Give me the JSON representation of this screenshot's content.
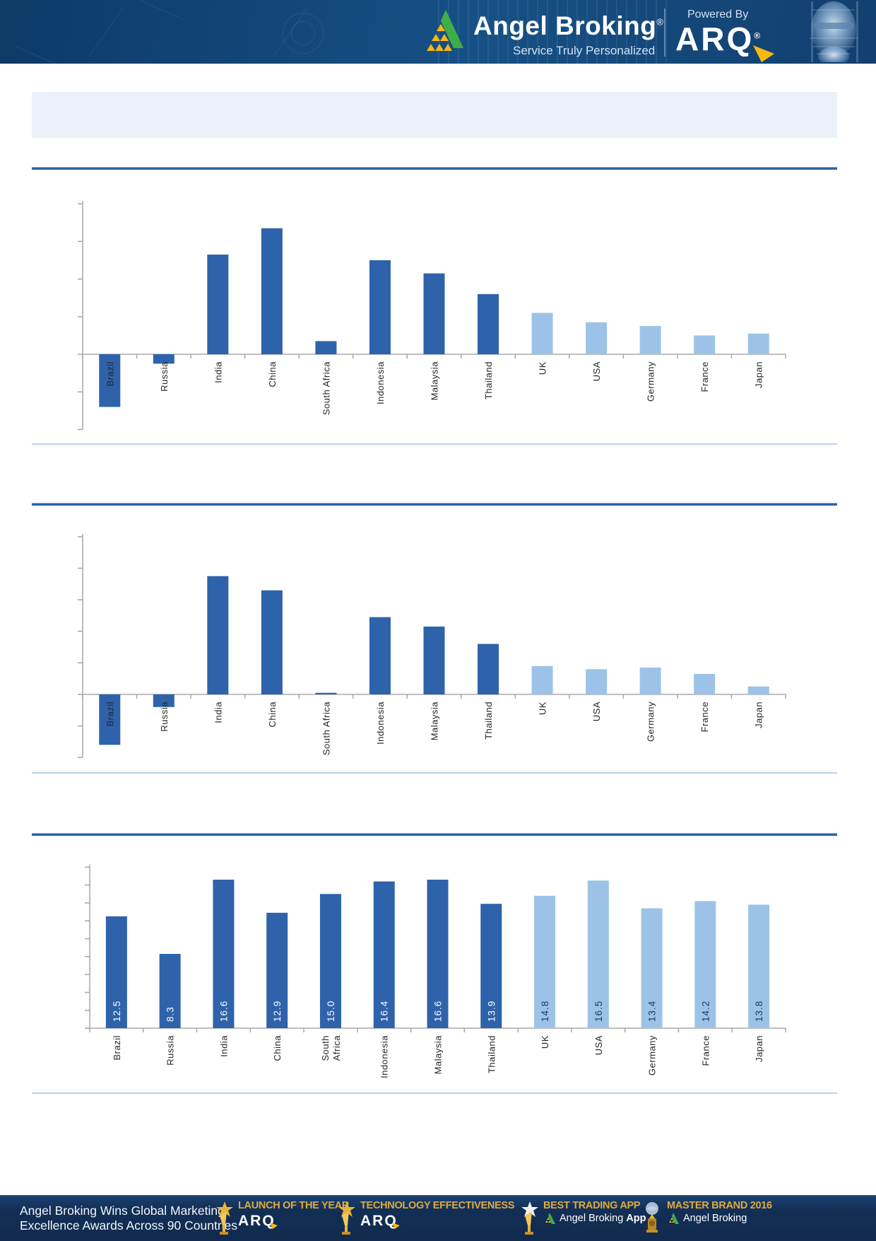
{
  "header": {
    "brand": "Angel Broking",
    "brand_registered": "®",
    "tagline": "Service Truly Personalized",
    "powered_by_label": "Powered By",
    "powered_by_brand": "ARQ",
    "powered_by_registered": "®",
    "colors": {
      "background": "#14497d",
      "logo_green": "#3fae49",
      "logo_yellow": "#f7b90d"
    }
  },
  "title_box": {
    "text": ""
  },
  "chart_data": [
    {
      "type": "bar",
      "title": "",
      "categories": [
        "Brazil",
        "Russia",
        "India",
        "China",
        "South Africa",
        "Indonesia",
        "Malaysia",
        "Thailand",
        "UK",
        "USA",
        "Germany",
        "France",
        "Japan"
      ],
      "values": [
        -2.8,
        -0.5,
        5.3,
        6.7,
        0.7,
        5.0,
        4.3,
        3.2,
        2.2,
        1.7,
        1.5,
        1.0,
        1.1
      ],
      "values_estimated_from_gridlines": true,
      "data_labels_shown": false,
      "axis_tick_labels_shown": false,
      "ylim": [
        -4,
        8
      ],
      "tick_step": 2,
      "grid": false,
      "legend": null,
      "bar_color_dark": "#2e63ac",
      "bar_color_light": "#9cc3e7",
      "light_from_index": 8
    },
    {
      "type": "bar",
      "title": "",
      "categories": [
        "Brazil",
        "Russia",
        "India",
        "China",
        "South Africa",
        "Indonesia",
        "Malaysia",
        "Thailand",
        "UK",
        "USA",
        "Germany",
        "France",
        "Japan"
      ],
      "values": [
        -3.2,
        -0.8,
        7.5,
        6.6,
        0.1,
        4.9,
        4.3,
        3.2,
        1.8,
        1.6,
        1.7,
        1.3,
        0.5
      ],
      "values_estimated_from_gridlines": true,
      "data_labels_shown": false,
      "axis_tick_labels_shown": false,
      "ylim": [
        -4,
        10
      ],
      "tick_step": 2,
      "grid": false,
      "legend": null,
      "bar_color_dark": "#2e63ac",
      "bar_color_light": "#9cc3e7",
      "light_from_index": 8
    },
    {
      "type": "bar",
      "title": "",
      "categories": [
        "Brazil",
        "Russia",
        "India",
        "China",
        "South Africa",
        "Indonesia",
        "Malaysia",
        "Thailand",
        "UK",
        "USA",
        "Germany",
        "France",
        "Japan"
      ],
      "values": [
        12.5,
        8.3,
        16.6,
        12.9,
        15.0,
        16.4,
        16.6,
        13.9,
        14.8,
        16.5,
        13.4,
        14.2,
        13.8
      ],
      "data_labels": [
        "12.5",
        "8.3",
        "16.6",
        "12.9",
        "15.0",
        "16.4",
        "16.6",
        "13.9",
        "14.8",
        "16.5",
        "13.4",
        "14.2",
        "13.8"
      ],
      "data_labels_shown": true,
      "axis_tick_labels_shown": false,
      "ylim": [
        0,
        18
      ],
      "tick_step": 2,
      "grid": false,
      "legend": null,
      "bar_color_dark": "#2e63ac",
      "bar_color_light": "#9cc3e7",
      "light_from_index": 8,
      "label_color_on_dark": "#ffffff",
      "label_color_on_light": "#1f3864",
      "wrapped_category": "South Africa"
    }
  ],
  "footer": {
    "message_line1": "Angel Broking Wins Global Marketing",
    "message_line2": "Excellence Awards Across 90 Countries",
    "awards": [
      {
        "title": "LAUNCH OF THE YEAR",
        "brand": "ARQ",
        "icon": "star-trophy"
      },
      {
        "title": "TECHNOLOGY EFFECTIVENESS",
        "brand": "ARQ",
        "icon": "star-trophy"
      },
      {
        "title": "BEST TRADING APP",
        "brand_prefix": "Angel Broking",
        "brand_bold": "App",
        "icon": "star-trophy"
      },
      {
        "title": "MASTER BRAND 2016",
        "brand_prefix": "Angel Broking",
        "brand_bold": "",
        "icon": "globe-trophy"
      }
    ],
    "colors": {
      "background": "#132f56",
      "gold": "#dcab3f"
    }
  }
}
